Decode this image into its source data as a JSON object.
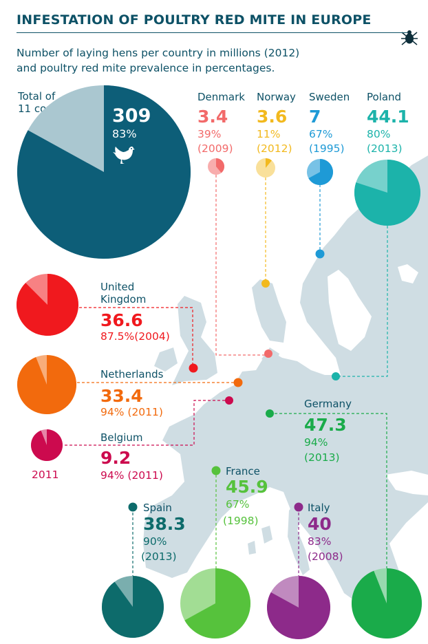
{
  "title": "INFESTATION OF POULTRY RED MITE IN EUROPE",
  "subtitle": [
    "Number of laying hens per country in millions (2012)",
    "and poultry red mite prevalence in percentages."
  ],
  "icons": {
    "title_icon": "mite-icon",
    "total_icon": "hen-icon"
  },
  "total": {
    "label": [
      "Total of",
      "11 countries"
    ],
    "value": "309",
    "percent": "83%"
  },
  "colors": {
    "total": "#0d5e78",
    "denmark": "#f26a6a",
    "norway": "#f2b91e",
    "sweden": "#1e9ad6",
    "poland": "#1cb3aa",
    "uk": "#f0191e",
    "netherlands": "#f26a0d",
    "belgium": "#cc0a4e",
    "germany": "#1aab4a",
    "france": "#56c23c",
    "spain": "#0d6b6b",
    "italy": "#8d2a8a",
    "map_land": "#cfdde3",
    "map_sea": "#ffffff"
  },
  "countries": {
    "denmark": {
      "name": "Denmark",
      "hens": "3.4",
      "prevalence": "39%",
      "year": "(2009)"
    },
    "norway": {
      "name": "Norway",
      "hens": "3.6",
      "prevalence": "11%",
      "year": "(2012)"
    },
    "sweden": {
      "name": "Sweden",
      "hens": "7",
      "prevalence": "67%",
      "year": "(1995)"
    },
    "poland": {
      "name": "Poland",
      "hens": "44.1",
      "prevalence": "80%",
      "year": "(2013)"
    },
    "uk": {
      "name": [
        "United",
        "Kingdom"
      ],
      "hens": "36.6",
      "prevalence": "87.5%",
      "year": "(2004)"
    },
    "netherlands": {
      "name": "Netherlands",
      "hens": "33.4",
      "prevalence": "94%",
      "year": "(2011)"
    },
    "belgium": {
      "name": "Belgium",
      "hens": "9.2",
      "prevalence": "94%",
      "year": "(2011)",
      "pie_label": "2011"
    },
    "germany": {
      "name": "Germany",
      "hens": "47.3",
      "prevalence": "94%",
      "year": "(2013)"
    },
    "france": {
      "name": "France",
      "hens": "45.9",
      "prevalence": "67%",
      "year": "(1998)"
    },
    "spain": {
      "name": "Spain",
      "hens": "38.3",
      "prevalence": "90%",
      "year": "(2013)"
    },
    "italy": {
      "name": "Italy",
      "hens": "40",
      "prevalence": "83%",
      "year": "(2008)"
    }
  },
  "chart_data": {
    "type": "pie",
    "unit": "laying hens in millions (2012), prevalence in %",
    "total": {
      "hens": 309,
      "prevalence": 83
    },
    "series": [
      {
        "name": "Denmark",
        "hens": 3.4,
        "prevalence": 39,
        "year": 2009
      },
      {
        "name": "Norway",
        "hens": 3.6,
        "prevalence": 11,
        "year": 2012
      },
      {
        "name": "Sweden",
        "hens": 7,
        "prevalence": 67,
        "year": 1995
      },
      {
        "name": "Poland",
        "hens": 44.1,
        "prevalence": 80,
        "year": 2013
      },
      {
        "name": "United Kingdom",
        "hens": 36.6,
        "prevalence": 87.5,
        "year": 2004
      },
      {
        "name": "Netherlands",
        "hens": 33.4,
        "prevalence": 94,
        "year": 2011
      },
      {
        "name": "Belgium",
        "hens": 9.2,
        "prevalence": 94,
        "year": 2011
      },
      {
        "name": "Germany",
        "hens": 47.3,
        "prevalence": 94,
        "year": 2013
      },
      {
        "name": "France",
        "hens": 45.9,
        "prevalence": 67,
        "year": 1998
      },
      {
        "name": "Spain",
        "hens": 38.3,
        "prevalence": 90,
        "year": 2013
      },
      {
        "name": "Italy",
        "hens": 40,
        "prevalence": 83,
        "year": 2008
      }
    ]
  }
}
